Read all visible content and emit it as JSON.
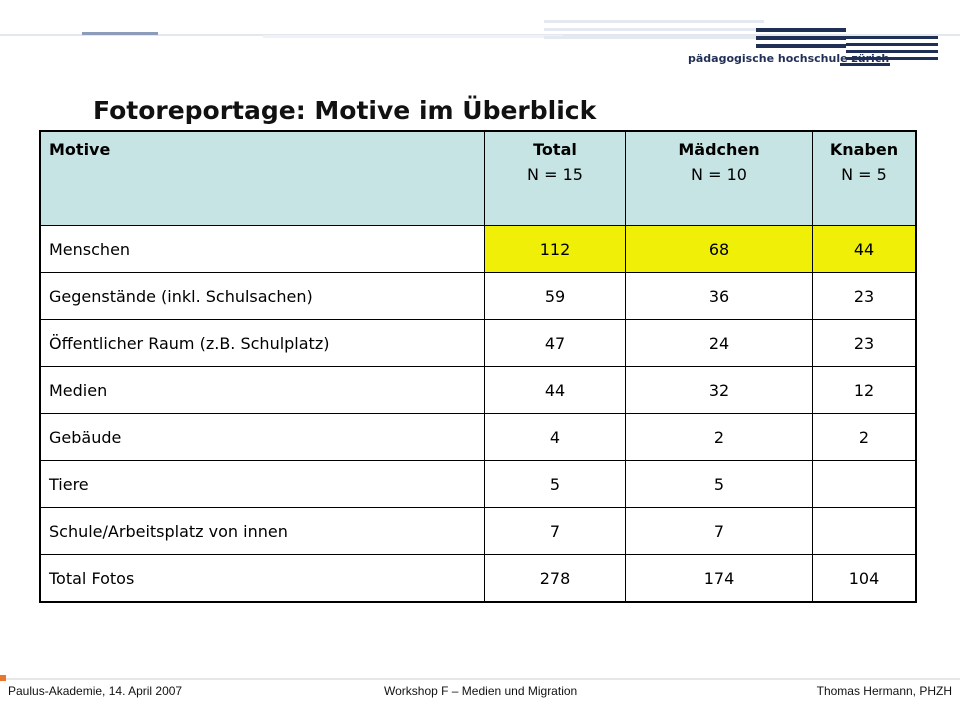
{
  "header": {
    "logo_text": "pädagogische hochschule zürich",
    "colors": {
      "navy": "#1f2f56",
      "light_blue": "#dfe6f0"
    }
  },
  "title": "Fotoreportage: Motive im Überblick",
  "table": {
    "columns": [
      {
        "label": "Motive",
        "sub": ""
      },
      {
        "label": "Total",
        "sub": "N = 15"
      },
      {
        "label": "Mädchen",
        "sub": "N = 10"
      },
      {
        "label": "Knaben",
        "sub": "N = 5"
      }
    ],
    "rows": [
      {
        "motive": "Menschen",
        "total": "112",
        "maedchen": "68",
        "knaben": "44",
        "highlight": true
      },
      {
        "motive": "Gegenstände (inkl. Schulsachen)",
        "total": "59",
        "maedchen": "36",
        "knaben": "23"
      },
      {
        "motive": "Öffentlicher Raum (z.B. Schulplatz)",
        "total": "47",
        "maedchen": "24",
        "knaben": "23"
      },
      {
        "motive": "Medien",
        "total": "44",
        "maedchen": "32",
        "knaben": "12"
      },
      {
        "motive": "Gebäude",
        "total": "4",
        "maedchen": "2",
        "knaben": "2"
      },
      {
        "motive": "Tiere",
        "total": "5",
        "maedchen": "5",
        "knaben": ""
      },
      {
        "motive": "Schule/Arbeitsplatz von innen",
        "total": "7",
        "maedchen": "7",
        "knaben": ""
      },
      {
        "motive": "Total Fotos",
        "total": "278",
        "maedchen": "174",
        "knaben": "104"
      }
    ],
    "colors": {
      "header_bg": "#c5e4e3",
      "highlight": "#f0ef08"
    }
  },
  "footer": {
    "left": "Paulus-Akademie, 14. April 2007",
    "center": "Workshop F – Medien und Migration",
    "right": "Thomas Hermann, PHZH"
  }
}
